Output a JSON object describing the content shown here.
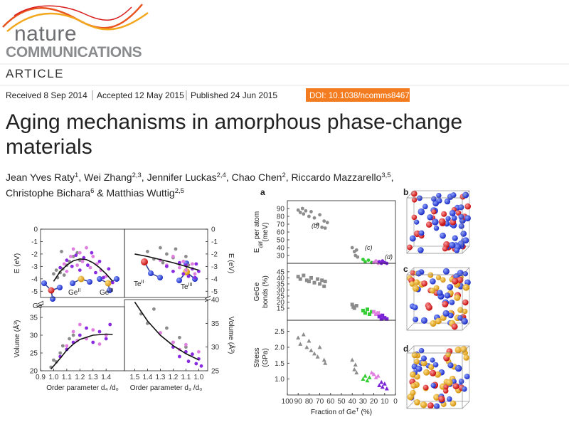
{
  "header": {
    "journal": "nature",
    "subtitle": "COMMUNICATIONS",
    "section": "ARTICLE"
  },
  "dates": {
    "received": "Received 8 Sep 2014",
    "accepted": "Accepted 12 May 2015",
    "published": "Published 24 Jun 2015",
    "doi": "DOI: 10.1038/ncomms8467"
  },
  "title_lines": [
    "Aging mechanisms in amorphous phase-change",
    "materials"
  ],
  "author_lines": [
    [
      {
        "name": "Jean Yves Raty",
        "affil": "1",
        "after": ","
      },
      {
        "name": "Wei Zhang",
        "affil": "2,3",
        "after": ","
      },
      {
        "name": "Jennifer Luckas",
        "affil": "2,4",
        "after": ","
      },
      {
        "name": "Chao Chen",
        "affil": "2",
        "after": ","
      },
      {
        "name": "Riccardo Mazzarello",
        "affil": "3,5",
        "after": ","
      }
    ],
    [
      {
        "name": "Christophe Bichara",
        "affil": "6",
        "after": "&"
      },
      {
        "name": "Matthias Wuttig",
        "affil": "2,5"
      }
    ]
  ],
  "figure1": {
    "labels": [
      {
        "base": "Ge",
        "sup": "I"
      },
      {
        "base": "Ge",
        "sup": "II"
      },
      {
        "base": "Ge",
        "sup": "III"
      },
      {
        "base": "Te",
        "sup": "II"
      },
      {
        "base": "Te",
        "sup": "III"
      }
    ]
  },
  "figure2": {
    "panels": [
      "a",
      "b",
      "c",
      "d"
    ]
  },
  "chart_data": [
    {
      "type": "scatter",
      "ylabel": "E (eV)",
      "yaxis_side": "left",
      "xlim": [
        0.9,
        1.54
      ],
      "ylim": [
        -5.5,
        0
      ],
      "yticks": [
        -5,
        -4,
        -3,
        -2,
        -1,
        0
      ],
      "series": [
        {
          "color": "#8c8c8c",
          "marker": "circle",
          "x": [
            1.0,
            1.02,
            1.03,
            1.05,
            1.06,
            1.07,
            1.08,
            1.1,
            1.12,
            1.15,
            1.18,
            1.2
          ],
          "values": [
            -3.6,
            -3.3,
            -3.9,
            -3.5,
            -1.8,
            -3.2,
            -3.7,
            -2.9,
            -2.6,
            -2.2,
            -1.9,
            -2.5
          ]
        },
        {
          "color": "#e07ee0",
          "marker": "circle",
          "x": [
            1.08,
            1.1,
            1.13,
            1.15,
            1.18,
            1.2,
            1.22,
            1.25,
            1.28,
            1.3,
            1.33,
            1.36,
            1.4
          ],
          "values": [
            -2.8,
            -3.4,
            -2.2,
            -1.6,
            -2.9,
            -1.9,
            -2.6,
            -1.5,
            -3.1,
            -2.2,
            -2.8,
            -3.3,
            -3.8
          ]
        },
        {
          "color": "#8a2be2",
          "marker": "circle",
          "x": [
            1.05,
            1.1,
            1.14,
            1.17,
            1.2,
            1.23,
            1.26,
            1.29,
            1.32,
            1.35,
            1.38,
            1.42,
            1.45
          ],
          "values": [
            -3.1,
            -2.5,
            -3.0,
            -2.1,
            -3.3,
            -2.3,
            -2.9,
            -1.9,
            -3.5,
            -2.6,
            -3.9,
            -3.2,
            -4.3
          ]
        },
        {
          "color": "#111111",
          "line": true,
          "x": [
            1.0,
            1.05,
            1.1,
            1.15,
            1.2,
            1.25,
            1.3,
            1.35,
            1.4,
            1.45
          ],
          "values": [
            -4.2,
            -3.4,
            -2.9,
            -2.55,
            -2.4,
            -2.45,
            -2.7,
            -3.1,
            -3.6,
            -4.2
          ]
        }
      ]
    },
    {
      "type": "scatter",
      "ylabel": "E (eV)",
      "yaxis_side": "right",
      "xlim": [
        1.58,
        0.93
      ],
      "ylim": [
        -5.5,
        0
      ],
      "yticks": [
        -5,
        -4,
        -3,
        -2,
        -1,
        0
      ],
      "series": [
        {
          "color": "#8c8c8c",
          "marker": "circle",
          "x": [
            1.4,
            1.35,
            1.3,
            1.28,
            1.25,
            1.2,
            1.18,
            1.15,
            1.1,
            1.08
          ],
          "values": [
            -1.8,
            -2.4,
            -1.5,
            -2.7,
            -2.0,
            -2.3,
            -1.6,
            -2.8,
            -2.2,
            -2.9
          ]
        },
        {
          "color": "#e07ee0",
          "marker": "circle",
          "x": [
            1.3,
            1.25,
            1.2,
            1.15,
            1.12,
            1.1,
            1.05,
            1.03
          ],
          "values": [
            -2.5,
            -2.9,
            -2.2,
            -3.1,
            -2.6,
            -3.3,
            -2.8,
            -3.6
          ]
        },
        {
          "color": "#8a2be2",
          "marker": "circle",
          "x": [
            1.25,
            1.2,
            1.15,
            1.12,
            1.1,
            1.08,
            1.05,
            1.03,
            1.02,
            1.0
          ],
          "values": [
            -3.0,
            -3.4,
            -2.7,
            -3.6,
            -2.9,
            -3.8,
            -3.2,
            -3.9,
            -2.8,
            -3.4
          ]
        },
        {
          "color": "#111111",
          "line": true,
          "x": [
            1.5,
            1.4,
            1.3,
            1.2,
            1.1,
            1.0
          ],
          "values": [
            -2.0,
            -2.2,
            -2.45,
            -2.7,
            -3.0,
            -3.3
          ]
        }
      ]
    },
    {
      "type": "scatter",
      "ylabel": "Volume (Å³)",
      "xlabel": "Order parameter d₄ /d₀",
      "yaxis_side": "left",
      "xlim": [
        0.9,
        1.54
      ],
      "ylim": [
        20,
        38
      ],
      "yticks": [
        20,
        25,
        30,
        35
      ],
      "xticks": [
        0.9,
        {
          "value": 1,
          "label": "1.0"
        },
        1.1,
        1.2,
        1.3,
        1.4
      ],
      "series": [
        {
          "color": "#8c8c8c",
          "marker": "circle",
          "x": [
            0.98,
            1.0,
            1.02,
            1.05,
            1.07,
            1.1,
            1.12,
            1.15
          ],
          "values": [
            21,
            23,
            22.5,
            25,
            27,
            26,
            29,
            30
          ]
        },
        {
          "color": "#e07ee0",
          "marker": "circle",
          "x": [
            1.1,
            1.15,
            1.18,
            1.2,
            1.25,
            1.3,
            1.35,
            1.4
          ],
          "values": [
            27,
            31,
            28.5,
            33,
            29,
            31.5,
            27.5,
            30
          ]
        },
        {
          "color": "#8a2be2",
          "marker": "circle",
          "x": [
            1.05,
            1.1,
            1.15,
            1.2,
            1.25,
            1.3,
            1.35,
            1.4,
            1.43
          ],
          "values": [
            24,
            26,
            28,
            30,
            32,
            28,
            31,
            29,
            33
          ]
        },
        {
          "color": "#111111",
          "line": true,
          "x": [
            0.98,
            1.05,
            1.1,
            1.15,
            1.2,
            1.3,
            1.4,
            1.45
          ],
          "values": [
            20.5,
            23.5,
            25.8,
            27.5,
            28.8,
            30.0,
            30.3,
            30.2
          ]
        }
      ]
    },
    {
      "type": "scatter",
      "ylabel": "Volume (Å³)",
      "xlabel": "Order parameter d₃ /d₀",
      "yaxis_side": "right",
      "xlim": [
        1.58,
        0.93
      ],
      "ylim": [
        25,
        40
      ],
      "yticks": [
        25,
        30,
        35,
        40
      ],
      "xticks": [
        1.5,
        1.4,
        1.3,
        1.2,
        1.1,
        {
          "value": 1,
          "label": "1.0"
        }
      ],
      "series": [
        {
          "color": "#8c8c8c",
          "marker": "circle",
          "x": [
            1.45,
            1.4,
            1.35,
            1.3,
            1.25,
            1.2,
            1.15,
            1.1
          ],
          "values": [
            37,
            35,
            38,
            33,
            34,
            31,
            32,
            30
          ]
        },
        {
          "color": "#e07ee0",
          "marker": "circle",
          "x": [
            1.3,
            1.2,
            1.15,
            1.1,
            1.05,
            1.0
          ],
          "values": [
            33,
            31,
            29.5,
            30.5,
            28.5,
            29
          ]
        },
        {
          "color": "#8a2be2",
          "marker": "circle",
          "x": [
            1.2,
            1.15,
            1.1,
            1.08,
            1.05,
            1.02,
            1.0,
            0.98
          ],
          "values": [
            30,
            28,
            29,
            27,
            28.5,
            26.5,
            27.5,
            26
          ]
        },
        {
          "color": "#111111",
          "line": true,
          "x": [
            1.5,
            1.4,
            1.3,
            1.2,
            1.1,
            1.0
          ],
          "values": [
            39.5,
            35.5,
            32.5,
            30.3,
            28.6,
            27.3
          ]
        }
      ]
    },
    {
      "type": "scatter",
      "ylabel_lines": [
        {
          "base": "E",
          "sub": "diff",
          "rest": " per atom"
        },
        "(meV)"
      ],
      "yaxis_side": "left",
      "xlim": [
        100,
        0
      ],
      "ylim": [
        20,
        100
      ],
      "yticks": [
        30,
        40,
        50,
        60,
        70,
        80,
        90
      ],
      "annotations": [
        "(b)",
        "(c)",
        "(d)"
      ],
      "series": [
        {
          "color": "#8c8c8c",
          "marker": "circle",
          "x": [
            90,
            88,
            86,
            85,
            83,
            80,
            78,
            75,
            72,
            70,
            68,
            66,
            65,
            63,
            40,
            38,
            37,
            36,
            35
          ],
          "values": [
            88,
            85,
            90,
            83,
            87,
            80,
            86,
            78,
            70,
            82,
            66,
            74,
            65,
            72,
            40,
            35,
            30,
            37,
            28
          ]
        },
        {
          "color": "#33cc33",
          "marker": "circle",
          "x": [
            30,
            28,
            25,
            22
          ],
          "values": [
            25,
            22,
            24,
            21
          ]
        },
        {
          "color": "#e07ee0",
          "marker": "circle",
          "x": [
            20,
            18,
            16,
            15
          ],
          "values": [
            21,
            23,
            20,
            22
          ]
        },
        {
          "color": "#7a22d6",
          "marker": "circle",
          "x": [
            15,
            13,
            12,
            10,
            8
          ],
          "values": [
            22,
            20,
            23,
            21,
            20
          ]
        }
      ]
    },
    {
      "type": "scatter",
      "ylabel_lines": [
        "GeGe",
        "bonds (%)"
      ],
      "yaxis_side": "left",
      "xlim": [
        100,
        0
      ],
      "ylim": [
        5,
        52
      ],
      "yticks": [
        15,
        20,
        25,
        30,
        35,
        40,
        45
      ],
      "series": [
        {
          "color": "#8c8c8c",
          "marker": "square",
          "x": [
            90,
            88,
            85,
            82,
            80,
            78,
            75,
            72,
            70,
            68,
            66,
            65,
            40,
            39,
            38,
            36
          ],
          "values": [
            41,
            39,
            42,
            38,
            37,
            40,
            36,
            39,
            35,
            38,
            33,
            37,
            18,
            16,
            15,
            17
          ]
        },
        {
          "color": "#33cc33",
          "marker": "square",
          "x": [
            30,
            28,
            26,
            24,
            22
          ],
          "values": [
            13,
            11,
            14,
            10,
            12
          ]
        },
        {
          "color": "#e07ee0",
          "marker": "square",
          "x": [
            20,
            18,
            16,
            14
          ],
          "values": [
            12,
            10,
            11,
            9
          ]
        },
        {
          "color": "#7a22d6",
          "marker": "square",
          "x": [
            15,
            13,
            12,
            10,
            8
          ],
          "values": [
            8,
            6,
            9,
            7,
            6
          ]
        }
      ]
    },
    {
      "type": "scatter",
      "ylabel_lines": [
        "Stress",
        "(GPa)"
      ],
      "xlabel": {
        "base": "Fraction of Ge",
        "sup": "T",
        "rest": " (%)"
      },
      "yaxis_side": "left",
      "xlim": [
        100,
        0
      ],
      "ylim": [
        0.5,
        2.85
      ],
      "yticks": [
        {
          "value": 1,
          "label": "1.0"
        },
        1.5,
        {
          "value": 2,
          "label": "2.0"
        },
        2.5
      ],
      "xticks": [
        100,
        90,
        80,
        70,
        60,
        50,
        40,
        30,
        20,
        10,
        0
      ],
      "series": [
        {
          "color": "#8c8c8c",
          "marker": "triangle",
          "x": [
            90,
            88,
            85,
            82,
            80,
            78,
            75,
            72,
            70,
            66,
            65,
            40,
            38,
            37,
            36
          ],
          "values": [
            2.3,
            2.1,
            2.4,
            2.0,
            2.2,
            1.9,
            1.8,
            1.7,
            2.0,
            1.6,
            1.5,
            1.6,
            1.3,
            1.45,
            1.2
          ]
        },
        {
          "color": "#33cc33",
          "marker": "triangle",
          "x": [
            30,
            28,
            26,
            24
          ],
          "values": [
            1.0,
            1.1,
            0.95,
            1.05
          ]
        },
        {
          "color": "#e07ee0",
          "marker": "triangle",
          "x": [
            22,
            20,
            18,
            16
          ],
          "values": [
            1.2,
            1.15,
            1.05,
            1.1
          ]
        },
        {
          "color": "#7a22d6",
          "marker": "triangle",
          "x": [
            15,
            13,
            12,
            10,
            8
          ],
          "values": [
            0.8,
            0.9,
            0.75,
            0.85,
            0.7
          ]
        }
      ]
    }
  ]
}
